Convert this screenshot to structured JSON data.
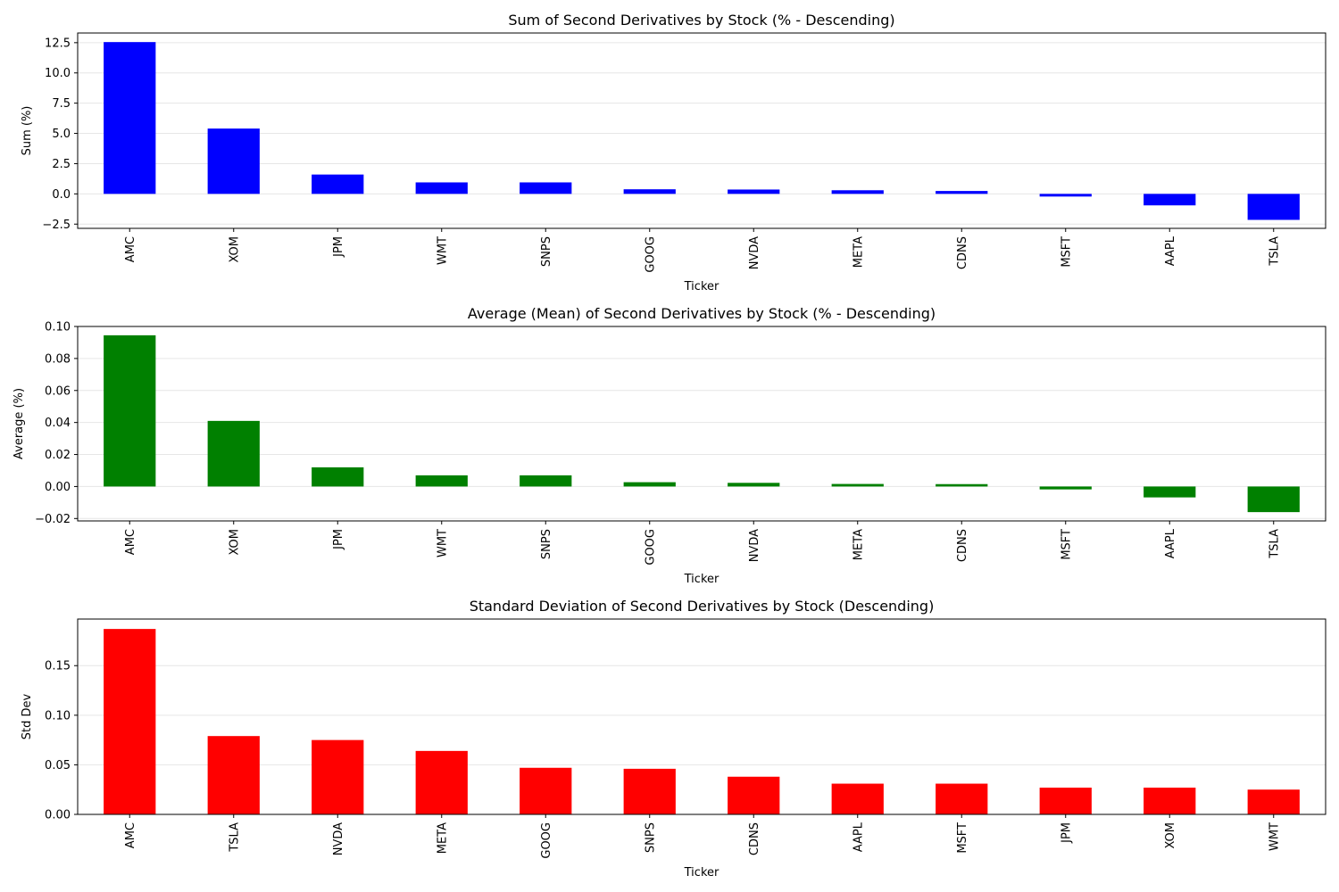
{
  "chart_data": [
    {
      "type": "bar",
      "title": "Sum of Second Derivatives by Stock (% - Descending)",
      "xlabel": "Ticker",
      "ylabel": "Sum (%)",
      "categories": [
        "AMC",
        "XOM",
        "JPM",
        "WMT",
        "SNPS",
        "GOOG",
        "NVDA",
        "META",
        "CDNS",
        "MSFT",
        "AAPL",
        "TSLA"
      ],
      "values": [
        12.55,
        5.4,
        1.6,
        0.95,
        0.95,
        0.38,
        0.36,
        0.3,
        0.24,
        -0.22,
        -0.95,
        -2.15
      ],
      "ylim": [
        -2.85,
        13.3
      ],
      "yticks": [
        -2.5,
        0.0,
        2.5,
        5.0,
        7.5,
        10.0,
        12.5
      ],
      "ytick_labels": [
        "−2.5",
        "0.0",
        "2.5",
        "5.0",
        "7.5",
        "10.0",
        "12.5"
      ],
      "color": "#0000ff",
      "grid": "y"
    },
    {
      "type": "bar",
      "title": "Average (Mean) of Second Derivatives by Stock (% - Descending)",
      "xlabel": "Ticker",
      "ylabel": "Average (%)",
      "categories": [
        "AMC",
        "XOM",
        "JPM",
        "WMT",
        "SNPS",
        "GOOG",
        "NVDA",
        "META",
        "CDNS",
        "MSFT",
        "AAPL",
        "TSLA"
      ],
      "values": [
        0.0945,
        0.041,
        0.012,
        0.007,
        0.007,
        0.0027,
        0.0023,
        0.0016,
        0.0015,
        -0.0018,
        -0.0068,
        -0.016
      ],
      "ylim": [
        -0.0215,
        0.1
      ],
      "yticks": [
        -0.02,
        0.0,
        0.02,
        0.04,
        0.06,
        0.08,
        0.1
      ],
      "ytick_labels": [
        "−0.02",
        "0.00",
        "0.02",
        "0.04",
        "0.06",
        "0.08",
        "0.10"
      ],
      "color": "#008000",
      "grid": "y"
    },
    {
      "type": "bar",
      "title": "Standard Deviation of Second Derivatives by Stock (Descending)",
      "xlabel": "Ticker",
      "ylabel": "Std Dev",
      "categories": [
        "AMC",
        "TSLA",
        "NVDA",
        "META",
        "GOOG",
        "SNPS",
        "CDNS",
        "AAPL",
        "MSFT",
        "JPM",
        "XOM",
        "WMT"
      ],
      "values": [
        0.187,
        0.079,
        0.075,
        0.064,
        0.047,
        0.046,
        0.038,
        0.031,
        0.031,
        0.027,
        0.027,
        0.025
      ],
      "ylim": [
        0,
        0.197
      ],
      "yticks": [
        0.0,
        0.05,
        0.1,
        0.15
      ],
      "ytick_labels": [
        "0.00",
        "0.05",
        "0.10",
        "0.15"
      ],
      "color": "#ff0000",
      "grid": "y"
    }
  ]
}
